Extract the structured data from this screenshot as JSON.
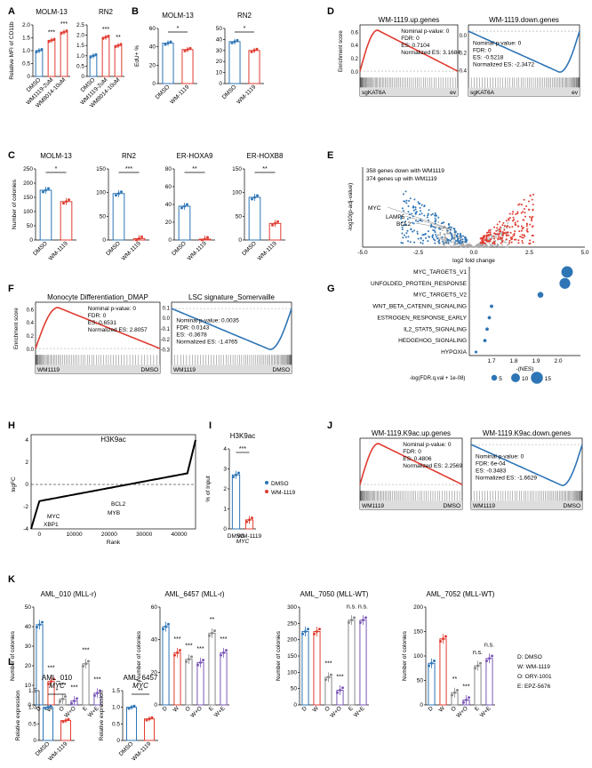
{
  "colors": {
    "dmso": "#2e75b6",
    "drug": "#e03c31",
    "grey": "#888888",
    "ory": "#7b59b6"
  },
  "panel_labels": [
    "A",
    "B",
    "C",
    "D",
    "E",
    "F",
    "G",
    "H",
    "I",
    "J",
    "K",
    "L"
  ],
  "chart_data": [
    {
      "id": "A1",
      "type": "bar",
      "title": "MOLM-13",
      "ylabel": "Relative MFI of CD11b",
      "ylim": [
        0,
        2
      ],
      "yticks": [
        "0",
        "0.5",
        "1.0",
        "1.5",
        "2.0"
      ],
      "categories": [
        "DMSO",
        "WM1119-2uM",
        "WM8014-10uM"
      ],
      "values": [
        1.0,
        1.4,
        1.72
      ],
      "sig": [
        "***",
        "***"
      ],
      "colors": [
        "dmso",
        "drug",
        "drug"
      ]
    },
    {
      "id": "A2",
      "type": "bar",
      "title": "RN2",
      "ylabel": "",
      "ylim": [
        0,
        2.5
      ],
      "yticks": [
        "0",
        "0.5",
        "1.0",
        "1.5",
        "2.0",
        "2.5"
      ],
      "categories": [
        "DMSO",
        "WM1119-2uM",
        "WM8014-10uM"
      ],
      "values": [
        1.0,
        1.9,
        1.5
      ],
      "sig": [
        "***",
        "**"
      ],
      "colors": [
        "dmso",
        "drug",
        "drug"
      ]
    },
    {
      "id": "B1",
      "type": "bar",
      "title": "MOLM-13",
      "ylabel": "EdU+ %",
      "ylim": [
        0,
        60
      ],
      "yticks": [
        "0",
        "20",
        "40",
        "60"
      ],
      "categories": [
        "DMSO",
        "WM-1119"
      ],
      "values": [
        44,
        37
      ],
      "sig": [
        "*"
      ],
      "colors": [
        "dmso",
        "drug"
      ]
    },
    {
      "id": "B2",
      "type": "bar",
      "title": "RN2",
      "ylabel": "",
      "ylim": [
        0,
        50
      ],
      "yticks": [
        "0",
        "10",
        "20",
        "30",
        "40",
        "50"
      ],
      "categories": [
        "DMSO",
        "WM-1119"
      ],
      "values": [
        38,
        30
      ],
      "sig": [
        "*"
      ],
      "colors": [
        "dmso",
        "drug"
      ]
    },
    {
      "id": "C1",
      "type": "bar",
      "title": "MOLM-13",
      "ylabel": "Number of colonies",
      "ylim": [
        0,
        250
      ],
      "yticks": [
        "0",
        "50",
        "100",
        "150",
        "200",
        "250"
      ],
      "categories": [
        "DMSO",
        "WM-1119"
      ],
      "values": [
        175,
        135
      ],
      "sig": [
        "*"
      ],
      "colors": [
        "dmso",
        "drug"
      ]
    },
    {
      "id": "C2",
      "type": "bar",
      "title": "RN2",
      "ylabel": "",
      "ylim": [
        0,
        150
      ],
      "yticks": [
        "0",
        "50",
        "100",
        "150"
      ],
      "categories": [
        "DMSO",
        "WM-1119"
      ],
      "values": [
        98,
        3
      ],
      "sig": [
        "***"
      ],
      "colors": [
        "dmso",
        "drug"
      ]
    },
    {
      "id": "C3",
      "type": "bar",
      "title": "ER-HOXA9",
      "ylabel": "",
      "ylim": [
        0,
        80
      ],
      "yticks": [
        "0",
        "20",
        "40",
        "60",
        "80"
      ],
      "categories": [
        "DMSO",
        "WM-1119"
      ],
      "values": [
        38,
        1
      ],
      "sig": [
        "**"
      ],
      "colors": [
        "dmso",
        "drug"
      ]
    },
    {
      "id": "C4",
      "type": "bar",
      "title": "ER-HOXB8",
      "ylabel": "",
      "ylim": [
        0,
        150
      ],
      "yticks": [
        "0",
        "50",
        "100",
        "150"
      ],
      "categories": [
        "DMSO",
        "WM-1119"
      ],
      "values": [
        90,
        35
      ],
      "sig": [
        "**"
      ],
      "colors": [
        "dmso",
        "drug"
      ]
    },
    {
      "id": "D1",
      "type": "line",
      "title": "WM-1119.up.genes",
      "ylabel": "Enrichment score",
      "yticks": [
        "0.0",
        "0.2",
        "0.4",
        "0.6"
      ],
      "stats": [
        "Nominal p-value: 0",
        "FDR: 0",
        "ES: 0.7104",
        "Normalized ES: 3.1684"
      ],
      "left": "sgKAT6A",
      "right": "ev",
      "dir": "up"
    },
    {
      "id": "D2",
      "type": "line",
      "title": "WM-1119.down.genes",
      "ylabel": "",
      "yticks": [
        "-0.4",
        "-0.2",
        "0.0"
      ],
      "stats": [
        "Nominal p-value: 0",
        "FDR: 0",
        "ES: -0.5218",
        "Normalized ES: -2.3472"
      ],
      "left": "sgKAT6A",
      "right": "ev",
      "dir": "down"
    },
    {
      "id": "E",
      "type": "scatter",
      "xlabel": "log2 fold change",
      "ylabel": "-log10(p-adj-value)",
      "xlim": [
        -5,
        5
      ],
      "xticks": [
        "-5.0",
        "-2.5",
        "0.0",
        "2.5",
        "5.0"
      ],
      "legend": [
        "358 genes down with WM1119",
        "374 genes up with WM1119"
      ],
      "labels": [
        "MYC",
        "LAMP5",
        "BCL2"
      ]
    },
    {
      "id": "F1",
      "type": "line",
      "title": "Monocyte Differentiation_DMAP",
      "ylabel": "Enrichment score",
      "yticks": [
        "0.0",
        "0.2",
        "0.4",
        "0.6"
      ],
      "stats": [
        "Nominal p-value: 0",
        "FDR: 0",
        "ES: 0.6531",
        "Normalized ES: 2.8057"
      ],
      "left": "WM1119",
      "right": "DMSO",
      "dir": "up"
    },
    {
      "id": "F2",
      "type": "line",
      "title": "LSC signature_Somervaille",
      "ylabel": "",
      "yticks": [
        "-0.3",
        "-0.2",
        "-0.1",
        "0.0",
        "0.1"
      ],
      "stats": [
        "Nominal p-value: 0.0035",
        "FDR: 0.0143",
        "ES: -0.3678",
        "Normalized ES: -1.4765"
      ],
      "left": "WM1119",
      "right": "DMSO",
      "dir": "down"
    },
    {
      "id": "G",
      "type": "scatter",
      "xlabel": "-(NES)",
      "xlim": [
        1.6,
        2.1
      ],
      "xticks": [
        "1.7",
        "1.8",
        "1.9",
        "2.0"
      ],
      "categories": [
        "MYC_TARGETS_V1",
        "UNFOLDED_PROTEIN_RESPONSE",
        "MYC_TARGETS_V2",
        "WNT_BETA_CATENIN_SIGNALING",
        "ESTROGEN_RESPONSE_EARLY",
        "IL2_STAT5_SIGNALING",
        "HEDGEHOG_SIGNALING",
        "HYPOXIA"
      ],
      "values": [
        2.04,
        2.03,
        1.92,
        1.7,
        1.69,
        1.68,
        1.67,
        1.63
      ],
      "sizes": [
        15,
        14,
        6,
        2,
        2,
        2,
        2,
        1
      ],
      "legend_title": "-log(FDR.q.val + 1e-08)",
      "legend_sizes": [
        "5",
        "10",
        "15"
      ]
    },
    {
      "id": "H",
      "type": "line",
      "title": "H3K9ac",
      "xlabel": "Rank",
      "ylabel": "logFC",
      "ylim": [
        -4,
        4
      ],
      "yticks": [
        "-4",
        "-2",
        "0",
        "2",
        "4"
      ],
      "xticks": [
        "0",
        "10000",
        "20000",
        "30000",
        "40000"
      ],
      "labels": [
        "MYC",
        "XBP1",
        "BCL2",
        "MYB"
      ]
    },
    {
      "id": "I",
      "type": "bar",
      "title": "H3K9ac",
      "ylabel": "% of Input",
      "ylim": [
        0,
        4
      ],
      "yticks": [
        "0",
        "1",
        "2",
        "3",
        "4"
      ],
      "categories": [
        "DMSO",
        "WM-1119"
      ],
      "values": [
        2.7,
        0.45
      ],
      "sig": [
        "***"
      ],
      "xlabel": "MYC",
      "legend": [
        "DMSO",
        "WM-1119"
      ]
    },
    {
      "id": "J1",
      "type": "line",
      "title": "WM-1119.K9ac.up.genes",
      "ylabel": "",
      "stats": [
        "Nominal p-value: 0",
        "FDR: 0",
        "ES: 0.4806",
        "Normalized ES: 2.2569"
      ],
      "left": "WM1119",
      "right": "DMSO",
      "dir": "up"
    },
    {
      "id": "J2",
      "type": "line",
      "title": "WM-1119.K9ac.down.genes",
      "ylabel": "",
      "stats": [
        "Nominal p-value: 0",
        "FDR: 6e-04",
        "ES: -0.3483",
        "Normalized ES: -1.6629"
      ],
      "left": "WM1119",
      "right": "DMSO",
      "dir": "down"
    },
    {
      "id": "K1",
      "type": "bar",
      "title": "AML_010 (MLL-r)",
      "ylabel": "Number of colonies",
      "ylim": [
        0,
        50
      ],
      "yticks": [
        "0",
        "10",
        "20",
        "30",
        "40",
        "50"
      ],
      "categories": [
        "D",
        "W",
        "O",
        "W+O",
        "E",
        "W+E"
      ],
      "values": [
        41,
        12,
        3,
        2,
        21,
        6
      ],
      "sig": [
        "***",
        "***",
        "***",
        "***",
        "***"
      ],
      "colors": [
        "dmso",
        "drug",
        "grey",
        "ory",
        "grey",
        "ory"
      ]
    },
    {
      "id": "K2",
      "type": "bar",
      "title": "AML_6457 (MLL-r)",
      "ylabel": "Number of colonies",
      "ylim": [
        0,
        60
      ],
      "yticks": [
        "0",
        "20",
        "40",
        "60"
      ],
      "categories": [
        "D",
        "W",
        "O",
        "W+O",
        "E",
        "W+E"
      ],
      "values": [
        48,
        32,
        28,
        26,
        44,
        32
      ],
      "sig": [
        "***",
        "***",
        "***",
        "**",
        "***"
      ],
      "colors": [
        "dmso",
        "drug",
        "grey",
        "ory",
        "grey",
        "ory"
      ]
    },
    {
      "id": "K3",
      "type": "bar",
      "title": "AML_7050 (MLL-WT)",
      "ylabel": "Number of colonies",
      "ylim": [
        0,
        300
      ],
      "yticks": [
        "0",
        "50",
        "100",
        "150",
        "200",
        "250",
        "300"
      ],
      "categories": [
        "D",
        "W",
        "O",
        "W+O",
        "E",
        "W+E"
      ],
      "values": [
        225,
        225,
        85,
        45,
        260,
        260
      ],
      "sig": [
        "",
        "***",
        "***",
        "n.s.",
        "n.s."
      ],
      "colors": [
        "dmso",
        "drug",
        "grey",
        "ory",
        "grey",
        "ory"
      ]
    },
    {
      "id": "K4",
      "type": "bar",
      "title": "AML_7052 (MLL-WT)",
      "ylabel": "Number of colonies",
      "ylim": [
        0,
        200
      ],
      "yticks": [
        "0",
        "50",
        "100",
        "150",
        "200"
      ],
      "categories": [
        "D",
        "W",
        "O",
        "W+O",
        "E",
        "W+E"
      ],
      "values": [
        85,
        135,
        25,
        10,
        80,
        95
      ],
      "sig": [
        "",
        "**",
        "***",
        "n.s.",
        "n.s."
      ],
      "colors": [
        "dmso",
        "drug",
        "grey",
        "ory",
        "grey",
        "ory"
      ]
    },
    {
      "id": "L1",
      "type": "bar",
      "title": "AML_010",
      "subtitle": "MYC",
      "ylabel": "Relative expression",
      "ylim": [
        0,
        1.5
      ],
      "yticks": [
        "0",
        "0.5",
        "1.0",
        "1.5"
      ],
      "categories": [
        "DMSO",
        "WM-1119"
      ],
      "values": [
        1.0,
        0.6
      ],
      "sig": [
        "*"
      ],
      "colors": [
        "dmso",
        "drug"
      ]
    },
    {
      "id": "L2",
      "type": "bar",
      "title": "AML_6457",
      "subtitle": "MYC",
      "ylabel": "Relative expression",
      "ylim": [
        0,
        1.5
      ],
      "yticks": [
        "0",
        "0.5",
        "1.0",
        "1.5"
      ],
      "categories": [
        "DMSO",
        "WM-1119"
      ],
      "values": [
        1.0,
        0.65
      ],
      "sig": [
        "**"
      ],
      "colors": [
        "dmso",
        "drug"
      ]
    }
  ],
  "k_legend": [
    "D: DMSO",
    "W: WM-1119",
    "O: ORY-1001",
    "E: EPZ-5676"
  ]
}
